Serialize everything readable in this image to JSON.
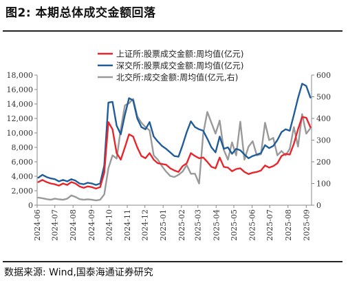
{
  "header": {
    "figure_title": "图2:  本期总体成交金额回落",
    "source_note": "数据来源:  Wind,国泰海通证券研究"
  },
  "chart_data": {
    "type": "line",
    "title": "",
    "x_tick_labels": [
      "2024-06",
      "2024-07",
      "2024-08",
      "2024-09",
      "2024-10",
      "2024-11",
      "2024-12",
      "2025-01",
      "2025-02",
      "2025-03",
      "2025-04",
      "2025-05",
      "2025-06",
      "2025-07",
      "2025-08",
      "2025-09"
    ],
    "y_left": {
      "range": [
        0,
        18000
      ],
      "ticks": [
        "0",
        "2,000",
        "4,000",
        "6,000",
        "8,000",
        "10,000",
        "12,000",
        "14,000",
        "16,000",
        "18,000"
      ]
    },
    "y_right": {
      "range": [
        0,
        600
      ],
      "ticks": [
        "0",
        "100",
        "200",
        "300",
        "400",
        "500",
        "600"
      ]
    },
    "grid": false,
    "legend_position": "top-center",
    "series": [
      {
        "name": "上证所:股票成交金额:周均值(亿元)",
        "axis": "left",
        "color": "#e8252b",
        "points": [
          [
            "2024-06-03",
            3200
          ],
          [
            "2024-06-10",
            3500
          ],
          [
            "2024-06-17",
            3200
          ],
          [
            "2024-06-24",
            3000
          ],
          [
            "2024-07-01",
            2900
          ],
          [
            "2024-07-08",
            2700
          ],
          [
            "2024-07-15",
            3000
          ],
          [
            "2024-07-22",
            2800
          ],
          [
            "2024-07-29",
            3200
          ],
          [
            "2024-08-05",
            3000
          ],
          [
            "2024-08-12",
            2600
          ],
          [
            "2024-08-19",
            2400
          ],
          [
            "2024-08-26",
            2600
          ],
          [
            "2024-09-02",
            2500
          ],
          [
            "2024-09-09",
            2300
          ],
          [
            "2024-09-16",
            2500
          ],
          [
            "2024-09-23",
            4500
          ],
          [
            "2024-09-30",
            11500
          ],
          [
            "2024-10-07",
            10500
          ],
          [
            "2024-10-14",
            7200
          ],
          [
            "2024-10-21",
            6300
          ],
          [
            "2024-10-28",
            8000
          ],
          [
            "2024-11-04",
            9800
          ],
          [
            "2024-11-11",
            9500
          ],
          [
            "2024-11-18",
            8000
          ],
          [
            "2024-11-25",
            6800
          ],
          [
            "2024-12-02",
            6500
          ],
          [
            "2024-12-09",
            7200
          ],
          [
            "2024-12-16",
            6300
          ],
          [
            "2024-12-23",
            5800
          ],
          [
            "2024-12-30",
            5700
          ],
          [
            "2025-01-06",
            5600
          ],
          [
            "2025-01-13",
            5100
          ],
          [
            "2025-01-20",
            4800
          ],
          [
            "2025-01-27",
            4600
          ],
          [
            "2025-02-03",
            5400
          ],
          [
            "2025-02-10",
            5800
          ],
          [
            "2025-02-17",
            7200
          ],
          [
            "2025-02-24",
            6800
          ],
          [
            "2025-03-03",
            6500
          ],
          [
            "2025-03-10",
            6600
          ],
          [
            "2025-03-17",
            6000
          ],
          [
            "2025-03-24",
            5300
          ],
          [
            "2025-03-31",
            5100
          ],
          [
            "2025-04-07",
            6600
          ],
          [
            "2025-04-14",
            5300
          ],
          [
            "2025-04-21",
            5200
          ],
          [
            "2025-04-28",
            4700
          ],
          [
            "2025-05-05",
            5000
          ],
          [
            "2025-05-12",
            5100
          ],
          [
            "2025-05-19",
            4600
          ],
          [
            "2025-05-26",
            4300
          ],
          [
            "2025-06-02",
            4500
          ],
          [
            "2025-06-09",
            4600
          ],
          [
            "2025-06-16",
            4800
          ],
          [
            "2025-06-23",
            5500
          ],
          [
            "2025-06-30",
            5200
          ],
          [
            "2025-07-07",
            5400
          ],
          [
            "2025-07-14",
            5800
          ],
          [
            "2025-07-21",
            6800
          ],
          [
            "2025-07-28",
            7100
          ],
          [
            "2025-08-04",
            7000
          ],
          [
            "2025-08-11",
            8500
          ],
          [
            "2025-08-18",
            10500
          ],
          [
            "2025-08-25",
            12200
          ],
          [
            "2025-09-01",
            12100
          ],
          [
            "2025-09-08",
            10800
          ]
        ]
      },
      {
        "name": "深交所:股票成交金额:周均值(亿元)",
        "axis": "left",
        "color": "#1f5c99",
        "points": [
          [
            "2024-06-03",
            3800
          ],
          [
            "2024-06-10",
            4200
          ],
          [
            "2024-06-17",
            3900
          ],
          [
            "2024-06-24",
            3700
          ],
          [
            "2024-07-01",
            3600
          ],
          [
            "2024-07-08",
            3300
          ],
          [
            "2024-07-15",
            3500
          ],
          [
            "2024-07-22",
            3300
          ],
          [
            "2024-07-29",
            3600
          ],
          [
            "2024-08-05",
            3400
          ],
          [
            "2024-08-12",
            3000
          ],
          [
            "2024-08-19",
            2900
          ],
          [
            "2024-08-26",
            3100
          ],
          [
            "2024-09-02",
            3000
          ],
          [
            "2024-09-09",
            2800
          ],
          [
            "2024-09-16",
            3000
          ],
          [
            "2024-09-23",
            5500
          ],
          [
            "2024-09-30",
            14200
          ],
          [
            "2024-10-07",
            14300
          ],
          [
            "2024-10-14",
            11000
          ],
          [
            "2024-10-21",
            9800
          ],
          [
            "2024-10-28",
            12500
          ],
          [
            "2024-11-04",
            14800
          ],
          [
            "2024-11-11",
            14500
          ],
          [
            "2024-11-18",
            12000
          ],
          [
            "2024-11-25",
            10800
          ],
          [
            "2024-12-02",
            10500
          ],
          [
            "2024-12-09",
            11500
          ],
          [
            "2024-12-16",
            9500
          ],
          [
            "2024-12-23",
            8800
          ],
          [
            "2024-12-30",
            8200
          ],
          [
            "2025-01-06",
            7800
          ],
          [
            "2025-01-13",
            7300
          ],
          [
            "2025-01-20",
            6800
          ],
          [
            "2025-01-27",
            6700
          ],
          [
            "2025-02-03",
            8300
          ],
          [
            "2025-02-10",
            10100
          ],
          [
            "2025-02-17",
            11600
          ],
          [
            "2025-02-24",
            10800
          ],
          [
            "2025-03-03",
            10500
          ],
          [
            "2025-03-10",
            10300
          ],
          [
            "2025-03-17",
            9200
          ],
          [
            "2025-03-24",
            8000
          ],
          [
            "2025-03-31",
            7300
          ],
          [
            "2025-04-07",
            9500
          ],
          [
            "2025-04-14",
            7800
          ],
          [
            "2025-04-21",
            8000
          ],
          [
            "2025-04-28",
            7100
          ],
          [
            "2025-05-05",
            7800
          ],
          [
            "2025-05-12",
            7600
          ],
          [
            "2025-05-19",
            7000
          ],
          [
            "2025-05-26",
            6500
          ],
          [
            "2025-06-02",
            6800
          ],
          [
            "2025-06-09",
            7000
          ],
          [
            "2025-06-16",
            7200
          ],
          [
            "2025-06-23",
            8300
          ],
          [
            "2025-06-30",
            7900
          ],
          [
            "2025-07-07",
            8200
          ],
          [
            "2025-07-14",
            9000
          ],
          [
            "2025-07-21",
            10100
          ],
          [
            "2025-07-28",
            10500
          ],
          [
            "2025-08-04",
            10300
          ],
          [
            "2025-08-11",
            12500
          ],
          [
            "2025-08-18",
            14800
          ],
          [
            "2025-08-25",
            16800
          ],
          [
            "2025-09-01",
            16500
          ],
          [
            "2025-09-08",
            14900
          ]
        ]
      },
      {
        "name": "北交所:成交金额:周均值(亿元,右)",
        "axis": "right",
        "color": "#999999",
        "points": [
          [
            "2024-06-03",
            35
          ],
          [
            "2024-06-10",
            32
          ],
          [
            "2024-06-17",
            28
          ],
          [
            "2024-06-24",
            25
          ],
          [
            "2024-07-01",
            30
          ],
          [
            "2024-07-08",
            27
          ],
          [
            "2024-07-15",
            25
          ],
          [
            "2024-07-22",
            30
          ],
          [
            "2024-07-29",
            45
          ],
          [
            "2024-08-05",
            38
          ],
          [
            "2024-08-12",
            28
          ],
          [
            "2024-08-19",
            25
          ],
          [
            "2024-08-26",
            27
          ],
          [
            "2024-09-02",
            25
          ],
          [
            "2024-09-09",
            22
          ],
          [
            "2024-09-16",
            25
          ],
          [
            "2024-09-23",
            50
          ],
          [
            "2024-09-30",
            170
          ],
          [
            "2024-10-07",
            230
          ],
          [
            "2024-10-14",
            215
          ],
          [
            "2024-10-21",
            350
          ],
          [
            "2024-10-28",
            460
          ],
          [
            "2024-11-04",
            470
          ],
          [
            "2024-11-11",
            490
          ],
          [
            "2024-11-18",
            410
          ],
          [
            "2024-11-25",
            380
          ],
          [
            "2024-12-02",
            360
          ],
          [
            "2024-12-09",
            345
          ],
          [
            "2024-12-16",
            230
          ],
          [
            "2024-12-23",
            210
          ],
          [
            "2024-12-30",
            180
          ],
          [
            "2025-01-06",
            155
          ],
          [
            "2025-01-13",
            135
          ],
          [
            "2025-01-20",
            130
          ],
          [
            "2025-01-27",
            140
          ],
          [
            "2025-02-03",
            155
          ],
          [
            "2025-02-10",
            185
          ],
          [
            "2025-02-17",
            145
          ],
          [
            "2025-02-24",
            145
          ],
          [
            "2025-03-03",
            100
          ],
          [
            "2025-03-10",
            330
          ],
          [
            "2025-03-17",
            430
          ],
          [
            "2025-03-24",
            380
          ],
          [
            "2025-03-31",
            330
          ],
          [
            "2025-04-07",
            390
          ],
          [
            "2025-04-14",
            255
          ],
          [
            "2025-04-21",
            210
          ],
          [
            "2025-04-28",
            290
          ],
          [
            "2025-05-05",
            230
          ],
          [
            "2025-05-12",
            385
          ],
          [
            "2025-05-19",
            210
          ],
          [
            "2025-05-26",
            270
          ],
          [
            "2025-06-02",
            295
          ],
          [
            "2025-06-09",
            230
          ],
          [
            "2025-06-16",
            235
          ],
          [
            "2025-06-23",
            380
          ],
          [
            "2025-06-30",
            300
          ],
          [
            "2025-07-07",
            310
          ],
          [
            "2025-07-14",
            230
          ],
          [
            "2025-07-21",
            250
          ],
          [
            "2025-07-28",
            230
          ],
          [
            "2025-08-04",
            260
          ],
          [
            "2025-08-11",
            360
          ],
          [
            "2025-08-18",
            270
          ],
          [
            "2025-08-25",
            420
          ],
          [
            "2025-09-01",
            330
          ],
          [
            "2025-09-08",
            355
          ]
        ]
      }
    ]
  }
}
